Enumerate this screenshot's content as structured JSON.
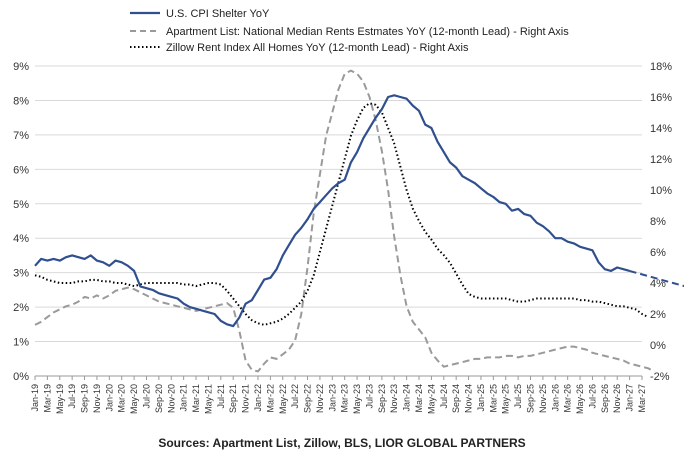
{
  "chart_data": {
    "type": "line",
    "source": "Sources: Apartment List, Zillow, BLS, LIOR GLOBAL PARTNERS",
    "legend_position": "top-left",
    "grid": true,
    "y_left": {
      "ticks": [
        "0%",
        "1%",
        "2%",
        "3%",
        "4%",
        "5%",
        "6%",
        "7%",
        "8%",
        "9%"
      ],
      "lim": [
        0,
        9
      ]
    },
    "y_right": {
      "ticks": [
        "-2%",
        "0%",
        "2%",
        "4%",
        "6%",
        "8%",
        "10%",
        "12%",
        "14%",
        "16%",
        "18%"
      ],
      "lim": [
        -2,
        18
      ]
    },
    "x_ticks": [
      "Jan-19",
      "Mar-19",
      "May-19",
      "Jul-19",
      "Sep-19",
      "Nov-19",
      "Jan-20",
      "Mar-20",
      "May-20",
      "Jul-20",
      "Sep-20",
      "Nov-20",
      "Jan-21",
      "Mar-21",
      "May-21",
      "Jul-21",
      "Sep-21",
      "Nov-21",
      "Jan-22",
      "Mar-22",
      "May-22",
      "Jul-22",
      "Sep-22",
      "Nov-22",
      "Jan-23",
      "Mar-23",
      "May-23",
      "Jul-23",
      "Sep-23",
      "Nov-23",
      "Jan-24",
      "Mar-24",
      "May-24",
      "Jul-24",
      "Sep-24",
      "Nov-24",
      "Jan-25",
      "Mar-25",
      "May-25",
      "Jul-25",
      "Sep-25",
      "Nov-25",
      "Jan-26",
      "Mar-26",
      "May-26",
      "Jul-26",
      "Sep-26",
      "Nov-26",
      "Jan-27",
      "Mar-27"
    ],
    "series": [
      {
        "name": "U.S. CPI Shelter YoY",
        "axis": "left",
        "color": "#2f4f8f",
        "style": "solid",
        "values": [
          3.2,
          3.4,
          3.35,
          3.4,
          3.35,
          3.45,
          3.5,
          3.45,
          3.4,
          3.5,
          3.35,
          3.3,
          3.2,
          3.35,
          3.3,
          3.2,
          3.05,
          2.6,
          2.55,
          2.5,
          2.4,
          2.35,
          2.3,
          2.25,
          2.1,
          2.0,
          1.95,
          1.9,
          1.85,
          1.8,
          1.6,
          1.5,
          1.45,
          1.7,
          2.1,
          2.2,
          2.5,
          2.8,
          2.85,
          3.1,
          3.5,
          3.8,
          4.1,
          4.3,
          4.55,
          4.85,
          5.05,
          5.25,
          5.45,
          5.6,
          5.7,
          6.2,
          6.5,
          6.9,
          7.2,
          7.5,
          7.75,
          8.1,
          8.15,
          8.1,
          8.05,
          7.85,
          7.7,
          7.3,
          7.2,
          6.8,
          6.5,
          6.2,
          6.05,
          5.8,
          5.7,
          5.6,
          5.45,
          5.3,
          5.2,
          5.05,
          5.0,
          4.8,
          4.85,
          4.7,
          4.65,
          4.45,
          4.35,
          4.2,
          4.0,
          4.0,
          3.9,
          3.85,
          3.75,
          3.7,
          3.65,
          3.3,
          3.1,
          3.05,
          3.15,
          3.1,
          3.05
        ],
        "projection": {
          "style": "dashed",
          "values": [
            3.05,
            3.0,
            2.95,
            2.9,
            2.85,
            2.8,
            2.75,
            2.7,
            2.65,
            2.6,
            2.55,
            2.5,
            2.45,
            2.4,
            2.35,
            2.3,
            2.25,
            2.2,
            2.15,
            2.1,
            2.05
          ]
        }
      },
      {
        "name": "Apartment List: National Median Rents Estmates YoY (12-month Lead) - Right Axis",
        "axis": "right",
        "color": "#9a9a9a",
        "style": "dashed",
        "values": [
          1.3,
          1.5,
          1.8,
          2.1,
          2.3,
          2.5,
          2.6,
          2.8,
          3.1,
          3.0,
          3.2,
          3.0,
          3.2,
          3.5,
          3.6,
          3.7,
          3.6,
          3.4,
          3.2,
          3.0,
          2.8,
          2.7,
          2.6,
          2.5,
          2.4,
          2.3,
          2.2,
          2.3,
          2.4,
          2.5,
          2.6,
          2.7,
          2.4,
          0.9,
          -1.0,
          -1.6,
          -1.7,
          -1.2,
          -0.8,
          -0.9,
          -0.6,
          -0.3,
          0.3,
          2.0,
          5.0,
          8.5,
          11.0,
          13.5,
          15.0,
          16.5,
          17.5,
          17.7,
          17.5,
          17.0,
          16.0,
          14.5,
          12.5,
          10.0,
          7.0,
          4.5,
          2.5,
          1.5,
          1.0,
          0.5,
          -0.5,
          -1.0,
          -1.4,
          -1.3,
          -1.2,
          -1.1,
          -1.0,
          -0.9,
          -0.9,
          -0.8,
          -0.8,
          -0.8,
          -0.7,
          -0.7,
          -0.8,
          -0.7,
          -0.7,
          -0.6,
          -0.5,
          -0.4,
          -0.3,
          -0.2,
          -0.1,
          -0.1,
          -0.2,
          -0.3,
          -0.5,
          -0.6,
          -0.7,
          -0.8,
          -0.9,
          -1.0,
          -1.2,
          -1.3,
          -1.4,
          -1.5,
          -1.7
        ]
      },
      {
        "name": "Zillow Rent Index All Homes YoY (12-month Lead) - Right Axis",
        "axis": "right",
        "color": "#000000",
        "style": "dotted",
        "values": [
          4.5,
          4.4,
          4.2,
          4.1,
          4.0,
          4.0,
          4.0,
          4.1,
          4.1,
          4.2,
          4.2,
          4.1,
          4.1,
          4.0,
          4.0,
          3.9,
          3.8,
          3.9,
          4.0,
          4.0,
          4.0,
          4.0,
          4.0,
          4.0,
          3.9,
          3.9,
          3.8,
          3.9,
          4.0,
          4.0,
          3.9,
          3.5,
          3.0,
          2.5,
          2.0,
          1.6,
          1.4,
          1.3,
          1.4,
          1.5,
          1.7,
          2.0,
          2.4,
          2.8,
          3.5,
          4.5,
          6.0,
          7.5,
          9.0,
          10.5,
          12.0,
          13.5,
          14.5,
          15.3,
          15.6,
          15.5,
          15.0,
          14.0,
          13.0,
          11.5,
          10.0,
          8.8,
          8.0,
          7.3,
          6.8,
          6.2,
          5.8,
          5.3,
          4.6,
          3.9,
          3.3,
          3.1,
          3.0,
          3.0,
          3.0,
          3.0,
          3.0,
          2.9,
          2.8,
          2.8,
          2.9,
          3.0,
          3.0,
          3.0,
          3.0,
          3.0,
          3.0,
          3.0,
          2.9,
          2.9,
          2.8,
          2.8,
          2.7,
          2.6,
          2.5,
          2.5,
          2.4,
          2.3,
          2.0,
          1.8
        ]
      }
    ]
  }
}
